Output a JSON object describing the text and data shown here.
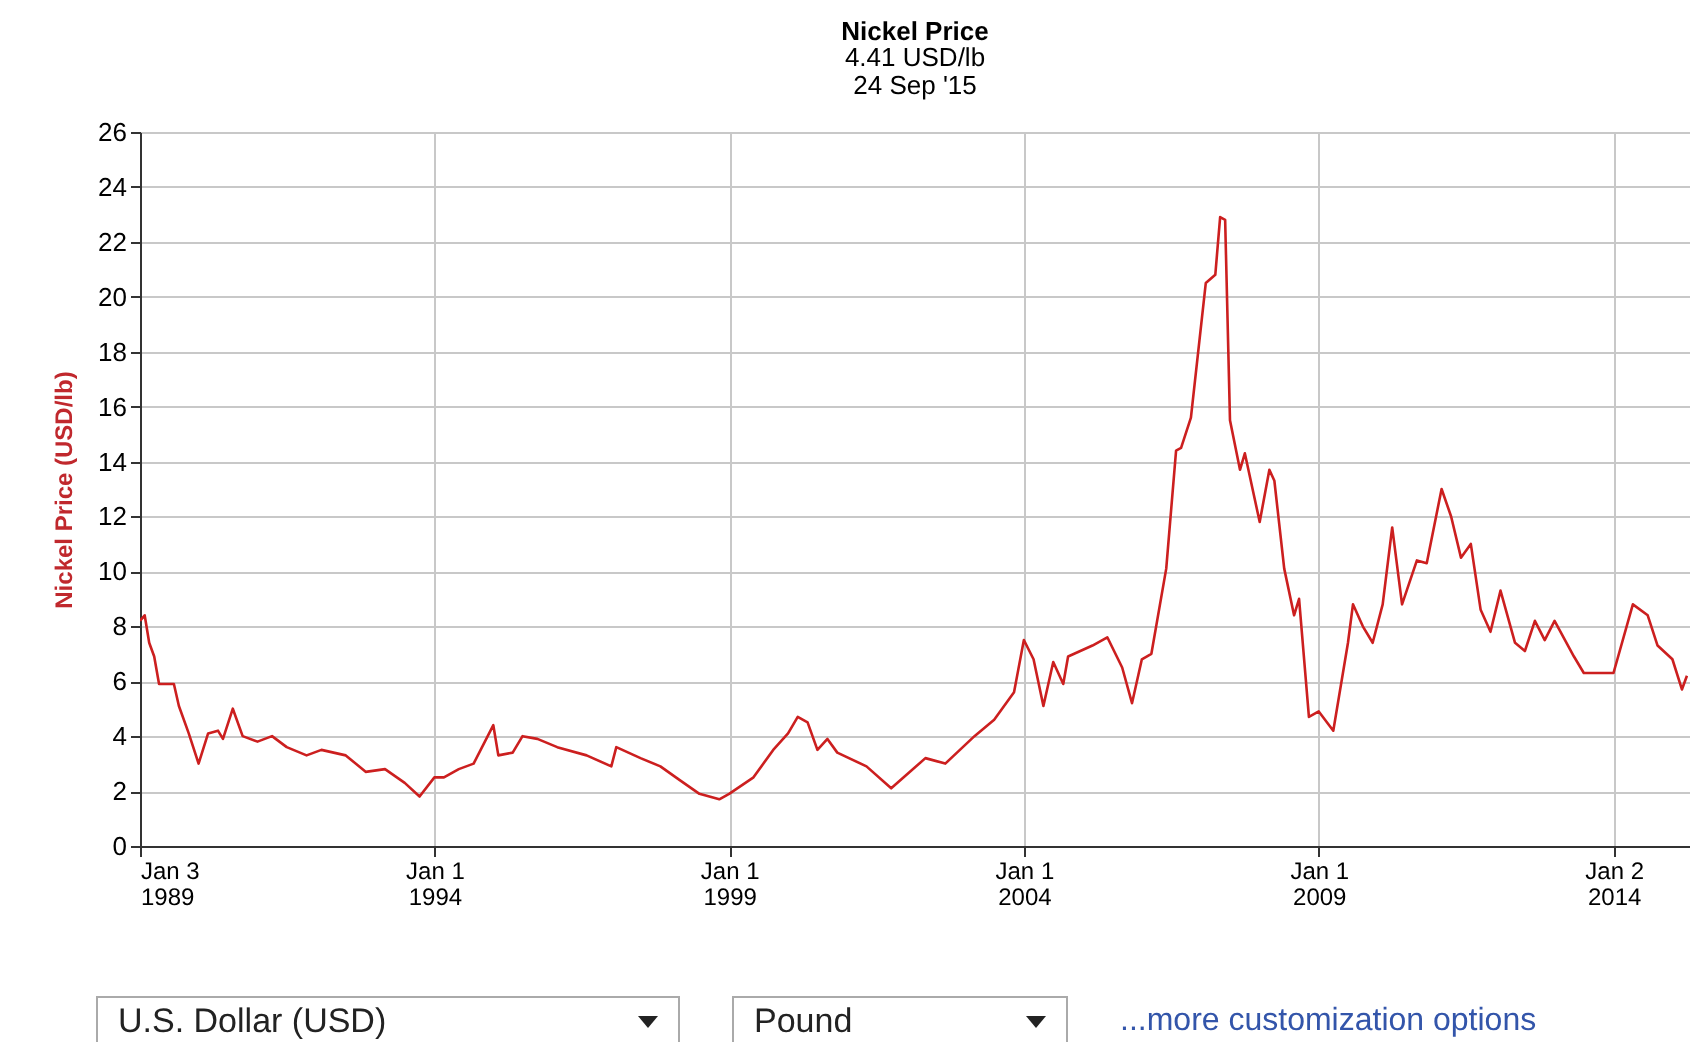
{
  "chart_data": {
    "type": "line",
    "title": "Nickel Price",
    "subtitle": "4.41 USD/lb\n24 Sep '15",
    "ylabel": "Nickel Price (USD/lb)",
    "annotations": [
      "U.S. Dollar (USD)",
      "Pound",
      "...more customization options"
    ],
    "x": [
      "1989-01-03",
      "1989-02",
      "1989-03",
      "1989-04",
      "1989-05",
      "1989-08",
      "1989-09",
      "1989-11",
      "1990-01",
      "1990-03",
      "1990-05",
      "1990-06",
      "1990-08",
      "1990-10",
      "1991-01",
      "1991-04",
      "1991-07",
      "1991-11",
      "1992-02",
      "1992-07",
      "1992-11",
      "1993-03",
      "1993-07",
      "1993-10",
      "1994-01",
      "1994-03",
      "1994-06",
      "1994-09",
      "1995-01",
      "1995-02",
      "1995-05",
      "1995-07",
      "1995-10",
      "1996-02",
      "1996-08",
      "1997-01",
      "1997-02",
      "1997-07",
      "1997-11",
      "1998-03",
      "1998-07",
      "1998-11",
      "1999-01",
      "1999-06",
      "1999-10",
      "2000-01",
      "2000-03",
      "2000-05",
      "2000-07",
      "2000-09",
      "2000-11",
      "2001-05",
      "2001-10",
      "2002-05",
      "2002-09",
      "2003-03",
      "2003-07",
      "2003-11",
      "2004-01",
      "2004-03",
      "2004-05",
      "2004-07",
      "2004-09",
      "2004-10",
      "2005-03",
      "2005-06",
      "2005-09",
      "2005-11",
      "2006-01",
      "2006-03",
      "2006-06",
      "2006-08",
      "2006-09",
      "2006-11",
      "2007-02",
      "2007-04",
      "2007-05",
      "2007-06",
      "2007-07",
      "2007-09",
      "2007-10",
      "2008-01",
      "2008-03",
      "2008-04",
      "2008-06",
      "2008-08",
      "2008-09",
      "2008-11",
      "2009-01",
      "2009-04",
      "2009-07",
      "2009-08",
      "2009-10",
      "2009-12",
      "2010-02",
      "2010-04",
      "2010-06",
      "2010-09",
      "2010-11",
      "2011-02",
      "2011-04",
      "2011-06",
      "2011-08",
      "2011-10",
      "2011-12",
      "2012-02",
      "2012-05",
      "2012-07",
      "2012-09",
      "2012-11",
      "2013-01",
      "2013-05",
      "2013-07",
      "2013-10",
      "2014-01",
      "2014-05",
      "2014-08",
      "2014-10",
      "2015-01",
      "2015-03",
      "2015-04"
    ],
    "series": [
      {
        "color": "#cc1f1f",
        "values": [
          8.2,
          8.4,
          7.4,
          6.9,
          5.9,
          5.9,
          5.1,
          4.1,
          3.0,
          4.1,
          4.2,
          3.9,
          5.0,
          4.0,
          3.8,
          4.0,
          3.6,
          3.3,
          3.5,
          3.3,
          2.7,
          2.8,
          2.3,
          1.8,
          2.5,
          2.5,
          2.8,
          3.0,
          4.4,
          3.3,
          3.4,
          4.0,
          3.9,
          3.6,
          3.3,
          2.9,
          3.6,
          3.2,
          2.9,
          2.4,
          1.9,
          1.7,
          1.9,
          2.5,
          3.5,
          4.1,
          4.7,
          4.5,
          3.5,
          3.9,
          3.4,
          2.9,
          2.1,
          3.2,
          3.0,
          4.0,
          4.6,
          5.6,
          7.5,
          6.8,
          5.1,
          6.7,
          5.9,
          6.9,
          7.3,
          7.6,
          6.5,
          5.2,
          6.8,
          7.0,
          10.1,
          14.4,
          14.5,
          15.6,
          20.5,
          20.8,
          22.9,
          22.8,
          15.5,
          13.7,
          14.3,
          11.8,
          13.7,
          13.3,
          10.1,
          8.4,
          9.0,
          4.7,
          4.9,
          4.2,
          7.4,
          8.8,
          8.0,
          7.4,
          8.8,
          11.6,
          8.8,
          10.4,
          10.3,
          13.0,
          12.0,
          10.5,
          11.0,
          8.6,
          7.8,
          9.3,
          7.4,
          7.1,
          8.2,
          7.5,
          8.2,
          6.9,
          6.3,
          6.3,
          6.3,
          8.8,
          8.4,
          7.3,
          6.8,
          5.7,
          6.2
        ]
      }
    ],
    "xlim": [
      "1989-01-03",
      "2015-04-20"
    ],
    "xticks": [
      {
        "value": "1989-01-03",
        "label": "Jan 3\n1989"
      },
      {
        "value": "1994-01-01",
        "label": "Jan 1\n1994"
      },
      {
        "value": "1999-01-01",
        "label": "Jan 1\n1999"
      },
      {
        "value": "2004-01-01",
        "label": "Jan 1\n2004"
      },
      {
        "value": "2009-01-01",
        "label": "Jan 1\n2009"
      },
      {
        "value": "2014-01-02",
        "label": "Jan 2\n2014"
      }
    ],
    "ylim": [
      0,
      26
    ],
    "yticks": [
      0,
      2,
      4,
      6,
      8,
      10,
      12,
      14,
      16,
      18,
      20,
      22,
      24,
      26
    ],
    "grid": true
  }
}
